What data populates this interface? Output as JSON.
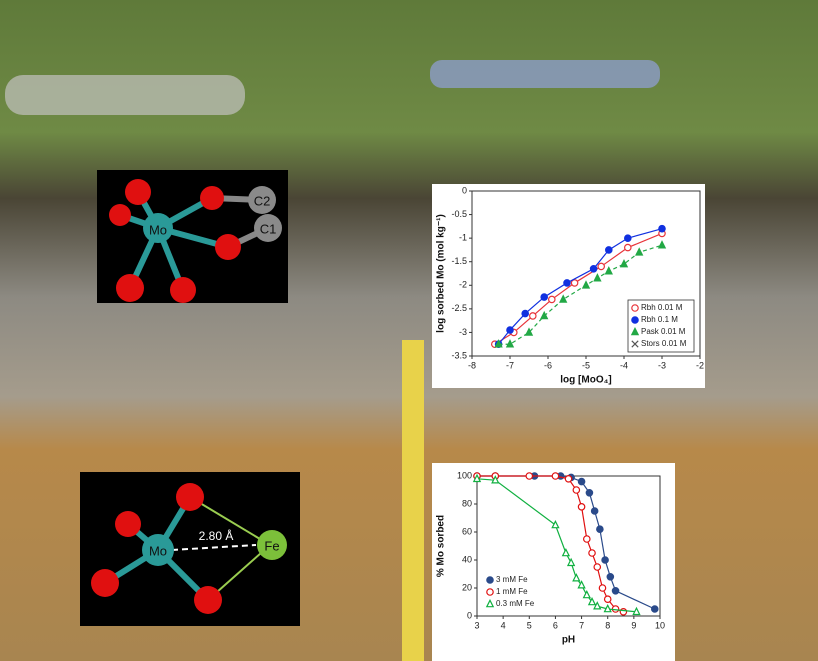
{
  "molecules": [
    {
      "atoms": [
        "Mo",
        "C2",
        "C1"
      ]
    },
    {
      "atoms": [
        "Mo",
        "Fe"
      ],
      "distance": "2.80 Å"
    }
  ],
  "chart_data": [
    {
      "type": "scatter",
      "xlabel": "log [MoO₄]",
      "ylabel": "log sorbed Mo (mol kg⁻¹)",
      "xlim": [
        -8,
        -2
      ],
      "ylim": [
        -3.5,
        0
      ],
      "xticks": [
        -8,
        -7,
        -6,
        -5,
        -4,
        -3,
        -2
      ],
      "yticks": [
        0,
        -0.5,
        -1,
        -1.5,
        -2,
        -2.5,
        -3,
        -3.5
      ],
      "legend": "lower right",
      "series": [
        {
          "name": "Rbh 0.01 M",
          "color": "#e8343a",
          "marker": "circle-open",
          "line": "solid",
          "x": [
            -7.4,
            -6.9,
            -6.4,
            -5.9,
            -5.3,
            -4.6,
            -3.9,
            -3.0
          ],
          "values": [
            -3.25,
            -3.0,
            -2.65,
            -2.3,
            -1.95,
            -1.6,
            -1.2,
            -0.9
          ]
        },
        {
          "name": "Rbh 0.1 M",
          "color": "#1030e0",
          "marker": "circle-filled",
          "line": "solid",
          "x": [
            -7.3,
            -7.0,
            -6.6,
            -6.1,
            -5.5,
            -4.8,
            -4.4,
            -3.9,
            -3.0
          ],
          "values": [
            -3.25,
            -2.95,
            -2.6,
            -2.25,
            -1.95,
            -1.65,
            -1.25,
            -1.0,
            -0.8
          ]
        },
        {
          "name": "Pask 0.01 M",
          "color": "#22a845",
          "marker": "triangle-filled",
          "line": "dashed",
          "x": [
            -7.3,
            -7.0,
            -6.5,
            -6.1,
            -5.6,
            -5.0,
            -4.7,
            -4.4,
            -4.0,
            -3.6,
            -3.0
          ],
          "values": [
            -3.25,
            -3.25,
            -3.0,
            -2.65,
            -2.3,
            -2.0,
            -1.85,
            -1.7,
            -1.55,
            -1.3,
            -1.15
          ]
        },
        {
          "name": "Stors 0.01 M",
          "color": "#555555",
          "marker": "x",
          "line": "none",
          "x": [],
          "values": []
        }
      ]
    },
    {
      "type": "scatter",
      "xlabel": "pH",
      "ylabel": "% Mo sorbed",
      "xlim": [
        3,
        10
      ],
      "ylim": [
        0,
        100
      ],
      "xticks": [
        3,
        4,
        5,
        6,
        7,
        8,
        9,
        10
      ],
      "yticks": [
        0,
        20,
        40,
        60,
        80,
        100
      ],
      "legend": "lower left",
      "series": [
        {
          "name": "3 mM Fe",
          "color": "#2a4a8a",
          "marker": "circle-filled",
          "line": "solid",
          "x": [
            3.0,
            3.7,
            5.2,
            6.2,
            6.6,
            7.0,
            7.3,
            7.5,
            7.7,
            7.9,
            8.1,
            8.3,
            9.8
          ],
          "values": [
            100,
            100,
            100,
            100,
            99,
            96,
            88,
            75,
            62,
            40,
            28,
            18,
            5
          ]
        },
        {
          "name": "1 mM Fe",
          "color": "#e01010",
          "marker": "circle-open",
          "line": "solid",
          "x": [
            3.0,
            3.7,
            5.0,
            6.0,
            6.5,
            6.8,
            7.0,
            7.2,
            7.4,
            7.6,
            7.8,
            8.0,
            8.3,
            8.6
          ],
          "values": [
            100,
            100,
            100,
            100,
            98,
            90,
            78,
            55,
            45,
            35,
            20,
            12,
            5,
            3
          ]
        },
        {
          "name": "0.3 mM Fe",
          "color": "#10b040",
          "marker": "triangle-open",
          "line": "solid",
          "x": [
            3.0,
            3.7,
            6.0,
            6.4,
            6.6,
            6.8,
            7.0,
            7.2,
            7.4,
            7.6,
            8.0,
            9.1
          ],
          "values": [
            98,
            97,
            65,
            45,
            38,
            27,
            22,
            15,
            10,
            7,
            5,
            3
          ]
        }
      ]
    }
  ]
}
